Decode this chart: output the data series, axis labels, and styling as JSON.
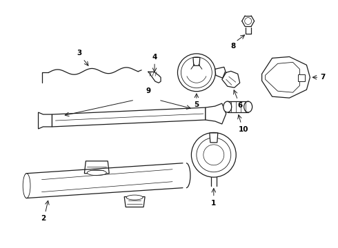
{
  "background_color": "#ffffff",
  "line_color": "#1a1a1a",
  "text_color": "#000000",
  "fig_width": 4.9,
  "fig_height": 3.6,
  "dpi": 100,
  "lw": 0.9
}
